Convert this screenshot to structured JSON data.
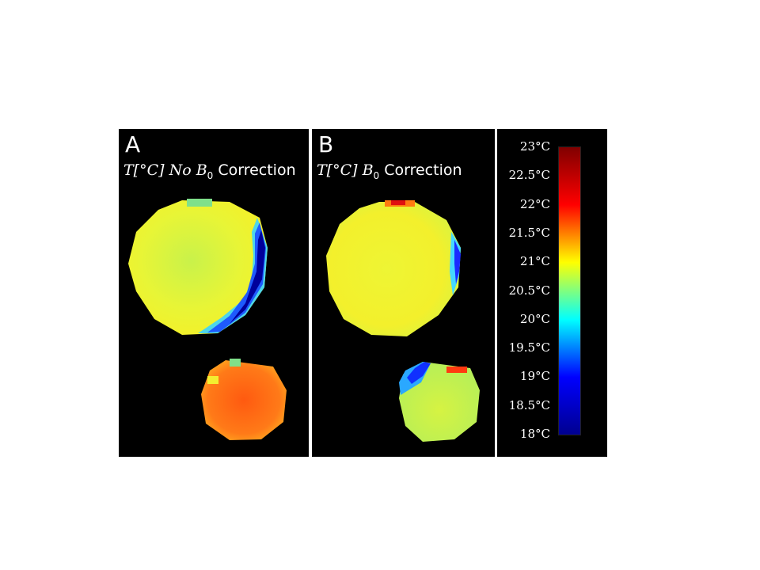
{
  "panels": [
    {
      "letter": "A",
      "title_prefix": "T[°C] No ",
      "title_mid": "B",
      "title_sub": "0",
      "title_suffix": " Correction"
    },
    {
      "letter": "B",
      "title_prefix": "T[°C] ",
      "title_mid": "B",
      "title_sub": "0",
      "title_suffix": " Correction"
    }
  ],
  "colorbar": {
    "colormap": "jet",
    "min": 18,
    "max": 23,
    "ticks": [
      "23°C",
      "22.5°C",
      "22°C",
      "21.5°C",
      "21°C",
      "20.5°C",
      "20°C",
      "19.5°C",
      "19°C",
      "18.5°C",
      "18°C"
    ],
    "colors": [
      "#00008f",
      "#0000ff",
      "#00ffff",
      "#ffff00",
      "#ff0000",
      "#800000"
    ]
  },
  "colors": {
    "background": "#000000",
    "text": "#ffffff"
  }
}
